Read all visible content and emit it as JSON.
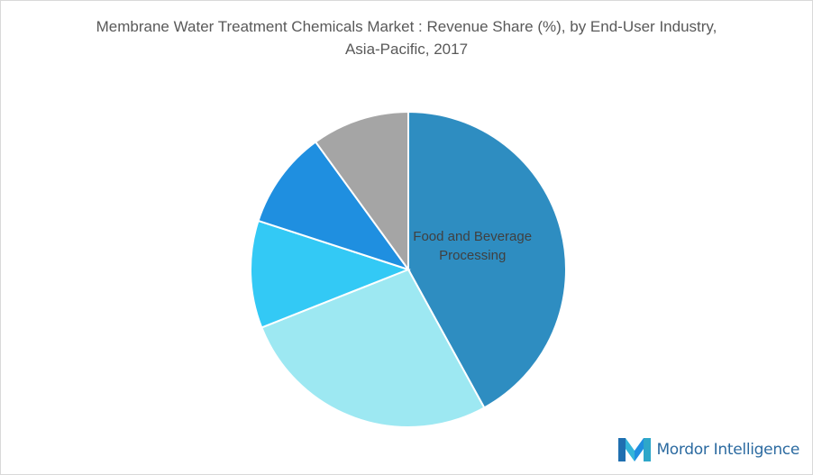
{
  "chart_data": {
    "type": "pie",
    "title": "Membrane Water Treatment Chemicals Market : Revenue Share (%), by End-User Industry, Asia-Pacific, 2017",
    "categories": [
      "Food and Beverage Processing",
      null,
      null,
      null,
      null
    ],
    "values": [
      42,
      27,
      11,
      10,
      10
    ],
    "colors": [
      "#2e8dc1",
      "#9de8f2",
      "#33c9f5",
      "#1f8fe0",
      "#a5a5a5"
    ]
  },
  "logo": {
    "text": "Mordor Intelligence"
  }
}
